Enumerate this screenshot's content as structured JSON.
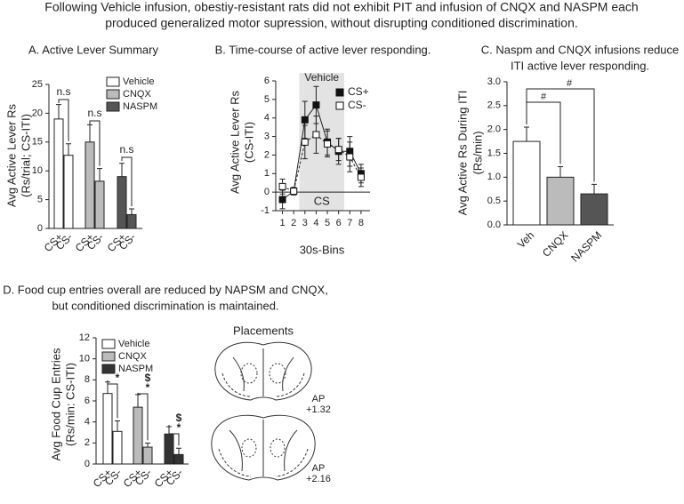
{
  "title": [
    "Following Vehicle infusion, obestiy-resistant rats did not exhibit PIT and infusion of CNQX and NASPM each",
    "produced generalized motor supression, without disrupting conditioned discrimination."
  ],
  "chart_data": [
    {
      "type": "grouped_bar",
      "title": "A. Active Lever Summary",
      "ylabel": [
        "Avg Active Lever Rs",
        "(Rs/trial; CS-ITI)"
      ],
      "categories": [
        "CS+",
        "CS-"
      ],
      "series": [
        {
          "name": "Vehicle",
          "color": "#ffffff",
          "values": [
            19,
            12.7
          ],
          "errors": [
            2.5,
            2
          ]
        },
        {
          "name": "CNQX",
          "color": "#bbbbbb",
          "values": [
            15,
            8.2
          ],
          "errors": [
            3,
            2.2
          ]
        },
        {
          "name": "NASPM",
          "color": "#555555",
          "values": [
            9,
            2.4
          ],
          "errors": [
            2.3,
            1
          ]
        }
      ],
      "ylim": [
        0,
        25
      ],
      "yticks": [
        0,
        5,
        10,
        15,
        20,
        25
      ],
      "annotations": [
        "n.s",
        "n.s",
        "n.s"
      ]
    },
    {
      "type": "line",
      "title": "B. Time-course of active lever responding.",
      "ylabel": [
        "Avg Active Lever Rs",
        "(CS-ITI)"
      ],
      "xlabel": "30s-Bins",
      "x": [
        1,
        2,
        3,
        4,
        5,
        6,
        7,
        8
      ],
      "series": [
        {
          "name": "CS+",
          "color": "#111111",
          "values": [
            -0.4,
            0.05,
            3.9,
            4.7,
            2.7,
            2.2,
            2.2,
            1.0
          ],
          "errors": [
            0.5,
            0.2,
            1.0,
            1.0,
            0.7,
            0.7,
            0.8,
            0.5
          ]
        },
        {
          "name": "CS-",
          "color": "#ffffff",
          "values": [
            0.3,
            0.05,
            2.7,
            3.1,
            2.6,
            2.3,
            1.9,
            0.8
          ],
          "errors": [
            0.4,
            0.2,
            0.9,
            1.0,
            0.7,
            0.6,
            0.8,
            0.5
          ]
        }
      ],
      "xlim": [
        0.4,
        8.8
      ],
      "xticks": [
        1,
        2,
        3,
        4,
        5,
        6,
        7,
        8
      ],
      "ylim": [
        -1,
        6
      ],
      "yticks": [
        -1,
        0,
        1,
        2,
        3,
        4,
        5,
        6
      ],
      "shaded_range": [
        2.5,
        6.5
      ],
      "shade_label": "Vehicle",
      "shade_inner_label": "CS"
    },
    {
      "type": "bar",
      "title": [
        "C. Naspm and CNQX infusions reduce",
        "ITI active lever responding."
      ],
      "ylabel": [
        "Avg Active Rs During ITI",
        "(Rs/min)"
      ],
      "categories": [
        "Veh",
        "CNQX",
        "NASPM"
      ],
      "values": [
        1.75,
        1.0,
        0.65
      ],
      "errors": [
        0.3,
        0.22,
        0.2
      ],
      "colors": [
        "#ffffff",
        "#bbbbbb",
        "#555555"
      ],
      "ylim": [
        0,
        3
      ],
      "yticks": [
        {
          "value": 0,
          "label": "0.0"
        },
        0.5,
        {
          "value": 1,
          "label": "1.0"
        },
        1.5,
        {
          "value": 2,
          "label": "2.0"
        },
        2.5,
        {
          "value": 3,
          "label": "3.0"
        }
      ],
      "annotations": [
        "#",
        "#"
      ]
    },
    {
      "type": "grouped_bar",
      "title": [
        "D. Food cup entries overall are reduced by NAPSM and CNQX,",
        "but conditioned discrimination is maintained."
      ],
      "ylabel": [
        "Avg Food Cup Entries",
        "(Rs/min: CS-ITI)"
      ],
      "categories": [
        "CS+",
        "CS-"
      ],
      "series": [
        {
          "name": "Vehicle",
          "color": "#ffffff",
          "values": [
            6.7,
            3.1
          ],
          "errors": [
            1.1,
            1.0
          ]
        },
        {
          "name": "CNQX",
          "color": "#bbbbbb",
          "values": [
            5.4,
            1.6
          ],
          "errors": [
            1.2,
            0.4
          ]
        },
        {
          "name": "NASPM",
          "color": "#333333",
          "values": [
            2.85,
            0.9
          ],
          "errors": [
            0.7,
            0.6
          ]
        }
      ],
      "ylim": [
        0,
        12
      ],
      "yticks": [
        0,
        2,
        4,
        6,
        8,
        10,
        12
      ],
      "annotations": [
        "*",
        "$",
        "*",
        "$",
        "*"
      ]
    }
  ],
  "placements": {
    "title": "Placements",
    "sections": [
      [
        "AP",
        "+1.32"
      ],
      [
        "AP",
        "+2.16"
      ]
    ]
  }
}
